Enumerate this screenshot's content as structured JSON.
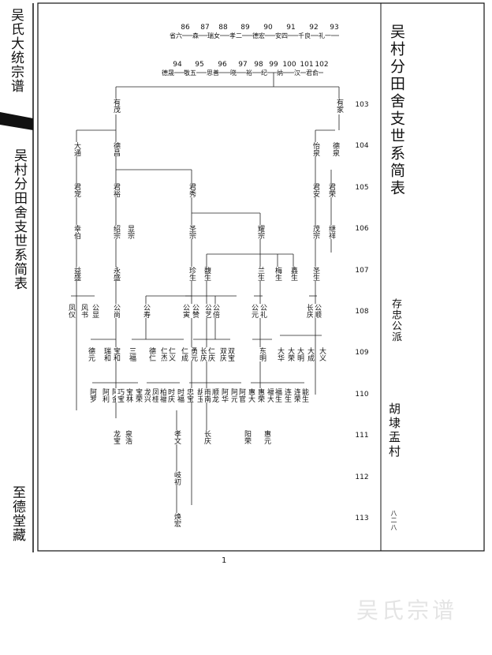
{
  "sidebar": {
    "book_title": "吴氏大统宗谱",
    "table_title": "吴村分田舍支世系简表",
    "hall": "至德堂藏"
  },
  "frame": {
    "title": "吴村分田舍支世系简表",
    "branch": "存忠公派",
    "place": "胡埭盂村",
    "folio": "八二八"
  },
  "lineage_top": {
    "numbers": [
      "86",
      "87",
      "88",
      "89",
      "90",
      "91",
      "92",
      "93"
    ],
    "names": [
      "省六",
      "森",
      "瑞女",
      "孝二",
      "德宏",
      "安四",
      "千良",
      "礼一"
    ]
  },
  "lineage_second": {
    "numbers": [
      "94",
      "95",
      "96",
      "97",
      "98",
      "99",
      "100",
      "101",
      "102"
    ],
    "names": [
      "德晟",
      "敬五",
      "思善",
      "晓",
      "裕",
      "纪",
      "纳",
      "汉",
      "君俞"
    ]
  },
  "generations": [
    "103",
    "104",
    "105",
    "106",
    "107",
    "108",
    "109",
    "110",
    "111",
    "112",
    "113"
  ],
  "nodes": [
    {
      "label": "有茂"
    },
    {
      "label": "有家"
    },
    {
      "label": "大通"
    },
    {
      "label": "德昌"
    },
    {
      "label": "怡泉"
    },
    {
      "label": "德泉"
    },
    {
      "label": "君宠"
    },
    {
      "label": "君裕"
    },
    {
      "label": "君秀"
    },
    {
      "label": "君安"
    },
    {
      "label": "君荣"
    },
    {
      "label": "幸伯"
    },
    {
      "label": "绍宗"
    },
    {
      "label": "显宗"
    },
    {
      "label": "圣宗"
    },
    {
      "label": "耀宗"
    },
    {
      "label": "茂宗"
    },
    {
      "label": "继祥"
    },
    {
      "label": "益盛"
    },
    {
      "label": "永盛"
    },
    {
      "label": "珍生"
    },
    {
      "label": "馥生"
    },
    {
      "label": "兰生"
    },
    {
      "label": "梅生"
    },
    {
      "label": "鑫生"
    },
    {
      "label": "圣生"
    },
    {
      "label": "凤仪"
    },
    {
      "label": "风书"
    },
    {
      "label": "公显"
    },
    {
      "label": "公尚"
    },
    {
      "label": "公寿"
    },
    {
      "label": "公寅"
    },
    {
      "label": "公赞"
    },
    {
      "label": "公艺"
    },
    {
      "label": "公倍"
    },
    {
      "label": "公元"
    },
    {
      "label": "公礼"
    },
    {
      "label": "长庆"
    },
    {
      "label": "公顺"
    },
    {
      "label": "德元"
    },
    {
      "label": "瑞和"
    },
    {
      "label": "宝和"
    },
    {
      "label": "三福"
    },
    {
      "label": "德仁"
    },
    {
      "label": "仁杰"
    },
    {
      "label": "仁义"
    },
    {
      "label": "仁成"
    },
    {
      "label": "勇元"
    },
    {
      "label": "长庆"
    },
    {
      "label": "仁庆"
    },
    {
      "label": "双庆"
    },
    {
      "label": "双宝"
    },
    {
      "label": "东明"
    },
    {
      "label": "大华"
    },
    {
      "label": "大荣"
    },
    {
      "label": "大明"
    },
    {
      "label": "大成"
    },
    {
      "label": "大义"
    },
    {
      "label": "阿罗"
    },
    {
      "label": "阿利"
    },
    {
      "label": "阿金"
    },
    {
      "label": "巧宝"
    },
    {
      "label": "宝林"
    },
    {
      "label": "宝荣"
    },
    {
      "label": "龙兴"
    },
    {
      "label": "凤桂"
    },
    {
      "label": "柏福"
    },
    {
      "label": "时庆"
    },
    {
      "label": "时福"
    },
    {
      "label": "忠宝"
    },
    {
      "label": "胡玉"
    },
    {
      "label": "雨南"
    },
    {
      "label": "顺龙"
    },
    {
      "label": "阿华"
    },
    {
      "label": "阿元"
    },
    {
      "label": "阿官"
    },
    {
      "label": "惠大"
    },
    {
      "label": "惠荣"
    },
    {
      "label": "福大"
    },
    {
      "label": "福生"
    },
    {
      "label": "连生"
    },
    {
      "label": "连荣"
    },
    {
      "label": "能生"
    },
    {
      "label": "龙宝"
    },
    {
      "label": "泉浩"
    },
    {
      "label": "孝文"
    },
    {
      "label": "长庆"
    },
    {
      "label": "阳荣"
    },
    {
      "label": "惠元"
    },
    {
      "label": "岐初"
    },
    {
      "label": "焕宏"
    }
  ],
  "page_number": "1",
  "watermark": "吴氏宗谱"
}
